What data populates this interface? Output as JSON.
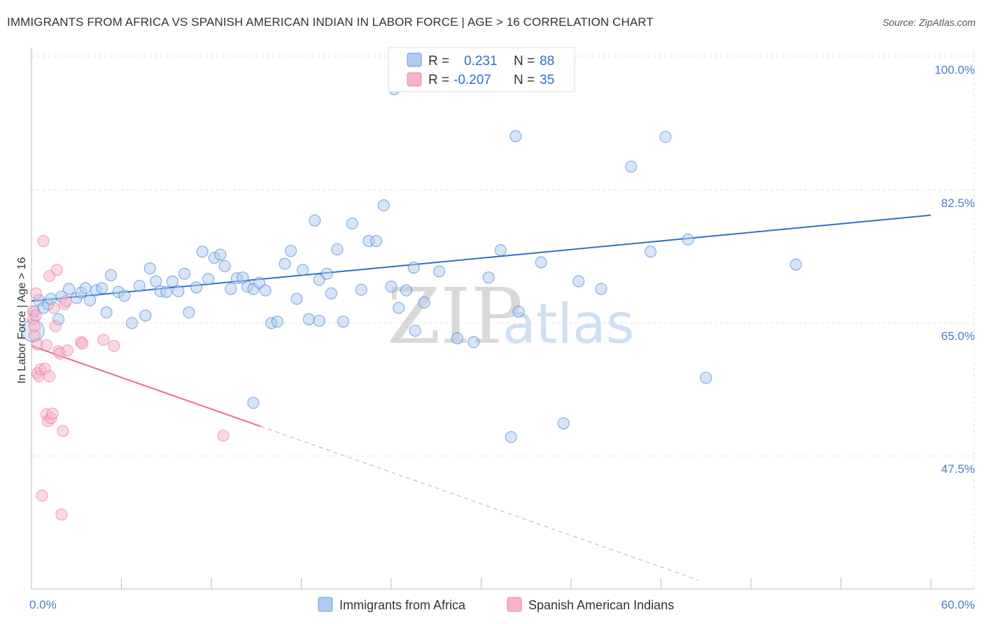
{
  "title": "IMMIGRANTS FROM AFRICA VS SPANISH AMERICAN INDIAN IN LABOR FORCE | AGE > 16 CORRELATION CHART",
  "source": "Source: ZipAtlas.com",
  "watermark": {
    "zip": "ZIP",
    "atlas": "atlas"
  },
  "colors": {
    "blue": "#2f6fc9",
    "blue_fill": "#aecbf0",
    "pink": "#e8699a",
    "pink_fill": "#f6b3c9",
    "tick": "#4a7cc9"
  },
  "legend": {
    "rows": [
      {
        "r_label": "R =",
        "r_value": "0.231",
        "n_label": "N =",
        "n_value": "88",
        "color": "blue"
      },
      {
        "r_label": "R =",
        "r_value": "-0.207",
        "n_label": "N =",
        "n_value": "35",
        "color": "pink"
      }
    ]
  },
  "chart_data": {
    "type": "scatter",
    "title": "IMMIGRANTS FROM AFRICA VS SPANISH AMERICAN INDIAN IN LABOR FORCE | AGE > 16 CORRELATION CHART",
    "xlabel": "",
    "ylabel": "In Labor Force | Age > 16",
    "xlim": [
      0,
      60
    ],
    "ylim": [
      30,
      102
    ],
    "x_tick_labels": [
      "0.0%",
      "60.0%"
    ],
    "y_ticks": [
      47.5,
      65.0,
      82.5,
      100.0
    ],
    "y_tick_labels": [
      "47.5%",
      "65.0%",
      "82.5%",
      "100.0%"
    ],
    "grid": true,
    "legend_position": "top-center",
    "series": [
      {
        "name": "Immigrants from Africa",
        "color": "blue",
        "trend": {
          "x": [
            0,
            60
          ],
          "y": [
            67.9,
            79.2
          ],
          "dashed_x": null
        },
        "points": [
          [
            0.1,
            64.0
          ],
          [
            0.2,
            66.5
          ],
          [
            0.5,
            68.0
          ],
          [
            0.8,
            67.0
          ],
          [
            1.1,
            67.5
          ],
          [
            1.3,
            68.2
          ],
          [
            1.8,
            65.5
          ],
          [
            2.0,
            68.5
          ],
          [
            2.5,
            69.5
          ],
          [
            3.0,
            68.3
          ],
          [
            3.3,
            69.0
          ],
          [
            3.6,
            69.6
          ],
          [
            3.9,
            68.0
          ],
          [
            4.3,
            69.3
          ],
          [
            4.7,
            69.6
          ],
          [
            5.0,
            66.4
          ],
          [
            5.3,
            71.3
          ],
          [
            5.8,
            69.1
          ],
          [
            6.2,
            68.6
          ],
          [
            6.7,
            65.0
          ],
          [
            7.2,
            69.9
          ],
          [
            7.6,
            66.0
          ],
          [
            7.9,
            72.2
          ],
          [
            8.3,
            70.5
          ],
          [
            8.6,
            69.2
          ],
          [
            9.0,
            69.1
          ],
          [
            9.4,
            70.5
          ],
          [
            9.8,
            69.2
          ],
          [
            10.2,
            71.5
          ],
          [
            10.5,
            66.4
          ],
          [
            11.0,
            69.7
          ],
          [
            11.4,
            74.4
          ],
          [
            11.8,
            70.8
          ],
          [
            12.2,
            73.6
          ],
          [
            12.6,
            74.0
          ],
          [
            12.9,
            72.5
          ],
          [
            13.3,
            69.5
          ],
          [
            13.7,
            70.9
          ],
          [
            14.1,
            71.0
          ],
          [
            14.4,
            69.8
          ],
          [
            14.8,
            69.5
          ],
          [
            15.2,
            70.3
          ],
          [
            15.6,
            69.3
          ],
          [
            16.0,
            65.0
          ],
          [
            16.4,
            65.2
          ],
          [
            16.9,
            72.8
          ],
          [
            17.3,
            74.5
          ],
          [
            17.7,
            68.2
          ],
          [
            18.1,
            72.0
          ],
          [
            18.5,
            65.5
          ],
          [
            18.9,
            78.5
          ],
          [
            19.2,
            70.7
          ],
          [
            19.7,
            71.5
          ],
          [
            20.0,
            68.9
          ],
          [
            20.4,
            74.7
          ],
          [
            20.8,
            65.2
          ],
          [
            21.4,
            78.1
          ],
          [
            22.0,
            69.4
          ],
          [
            22.5,
            75.8
          ],
          [
            23.0,
            75.8
          ],
          [
            23.5,
            80.5
          ],
          [
            24.0,
            69.8
          ],
          [
            24.5,
            67.0
          ],
          [
            25.0,
            69.3
          ],
          [
            25.5,
            72.3
          ],
          [
            26.2,
            67.7
          ],
          [
            27.2,
            71.8
          ],
          [
            28.4,
            63.0
          ],
          [
            29.5,
            62.5
          ],
          [
            30.5,
            71.0
          ],
          [
            31.3,
            74.6
          ],
          [
            32.5,
            66.5
          ],
          [
            34.0,
            73.0
          ],
          [
            36.5,
            70.5
          ],
          [
            38.0,
            69.5
          ],
          [
            40.0,
            85.6
          ],
          [
            41.3,
            74.4
          ],
          [
            43.8,
            76.0
          ],
          [
            45.0,
            57.8
          ],
          [
            24.2,
            95.8
          ],
          [
            32.3,
            89.6
          ],
          [
            42.3,
            89.5
          ],
          [
            51.0,
            72.7
          ],
          [
            14.8,
            54.5
          ],
          [
            19.2,
            65.3
          ],
          [
            25.6,
            64.0
          ],
          [
            32.0,
            50.0
          ],
          [
            35.5,
            51.8
          ]
        ]
      },
      {
        "name": "Spanish American Indians",
        "color": "pink",
        "trend": {
          "x": [
            0,
            15.3
          ],
          "y": [
            62.0,
            51.4
          ],
          "dashed_x": [
            15.3,
            44.5
          ]
        },
        "points": [
          [
            0.1,
            66.6
          ],
          [
            0.1,
            65.5
          ],
          [
            0.2,
            63.4
          ],
          [
            0.2,
            64.6
          ],
          [
            0.3,
            68.9
          ],
          [
            0.4,
            62.2
          ],
          [
            0.4,
            58.4
          ],
          [
            0.5,
            58.0
          ],
          [
            0.6,
            58.9
          ],
          [
            0.7,
            42.3
          ],
          [
            0.8,
            75.8
          ],
          [
            0.9,
            59.0
          ],
          [
            1.0,
            62.1
          ],
          [
            1.0,
            53.0
          ],
          [
            1.1,
            52.1
          ],
          [
            1.2,
            58.0
          ],
          [
            1.2,
            71.2
          ],
          [
            1.3,
            52.5
          ],
          [
            1.4,
            53.1
          ],
          [
            1.5,
            67.0
          ],
          [
            1.6,
            64.6
          ],
          [
            1.7,
            72.0
          ],
          [
            1.8,
            61.3
          ],
          [
            1.9,
            61.0
          ],
          [
            2.0,
            39.8
          ],
          [
            2.1,
            50.8
          ],
          [
            2.2,
            67.5
          ],
          [
            2.3,
            67.9
          ],
          [
            2.4,
            61.4
          ],
          [
            3.3,
            62.5
          ],
          [
            3.4,
            62.3
          ],
          [
            4.8,
            62.8
          ],
          [
            5.5,
            62.0
          ],
          [
            12.8,
            50.2
          ],
          [
            0.3,
            66.0
          ]
        ]
      }
    ]
  }
}
